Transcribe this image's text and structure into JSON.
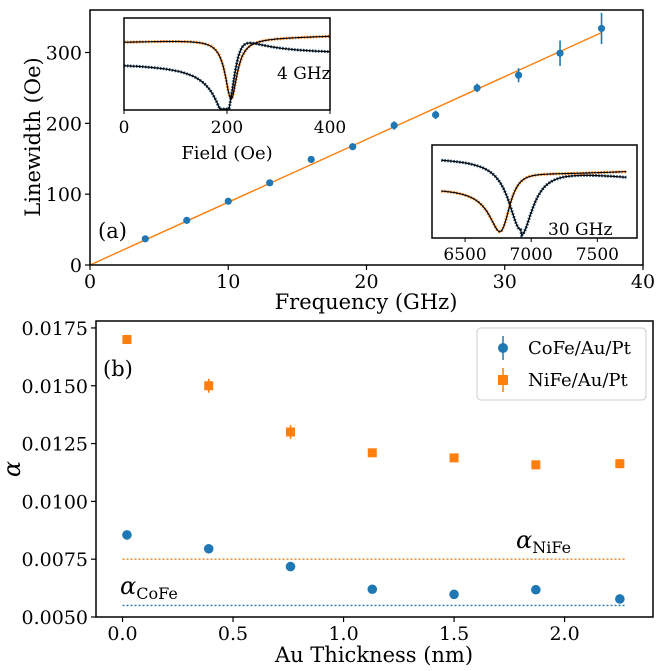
{
  "chart_data": [
    {
      "type": "scatter",
      "panel_tag": "(a)",
      "xlabel": "Frequency (GHz)",
      "ylabel": "Linewidth (Oe)",
      "xlim": [
        0,
        40
      ],
      "ylim": [
        0,
        360
      ],
      "xticks": [
        "0",
        "10",
        "20",
        "30",
        "40"
      ],
      "yticks": [
        "0",
        "100",
        "200",
        "300"
      ],
      "colors": {
        "data": "#1f77b4",
        "fit": "#ff7f0e"
      },
      "series": [
        {
          "x": [
            4,
            7,
            10,
            13,
            16,
            19,
            22,
            25,
            28,
            31,
            34,
            37
          ],
          "y": [
            37,
            63,
            90,
            116,
            149,
            167,
            197,
            212,
            250,
            268,
            299,
            334
          ],
          "yerr": [
            2,
            2,
            2,
            3,
            3,
            3,
            6,
            6,
            6,
            10,
            18,
            22
          ]
        }
      ],
      "fit": {
        "x": [
          0,
          37
        ],
        "y": [
          0,
          328
        ]
      },
      "insets": [
        {
          "annotation": "4 GHz",
          "xlabel": "Field (Oe)",
          "xlim": [
            0,
            400
          ],
          "xticks": [
            "0",
            "200",
            "400"
          ],
          "curve_colors": [
            "#ff7f0e",
            "#1f4e79"
          ]
        },
        {
          "annotation": "30 GHz",
          "xlim": [
            6250,
            7800
          ],
          "xticks": [
            "6500",
            "7000",
            "7500"
          ],
          "curve_colors": [
            "#ff7f0e",
            "#1f4e79"
          ]
        }
      ]
    },
    {
      "type": "scatter",
      "panel_tag": "(b)",
      "xlabel": "Au Thickness (nm)",
      "ylabel": "α",
      "xlim": [
        -0.12,
        2.4
      ],
      "ylim": [
        0.005,
        0.0178
      ],
      "xticks": [
        "0.0",
        "0.5",
        "1.0",
        "1.5",
        "2.0"
      ],
      "yticks": [
        "0.0050",
        "0.0075",
        "0.0100",
        "0.0125",
        "0.0150",
        "0.0175"
      ],
      "legend_position": "top-right",
      "series": [
        {
          "name": "CoFe/Au/Pt",
          "marker": "circle",
          "color": "#1f77b4",
          "x": [
            0.02,
            0.39,
            0.76,
            1.13,
            1.5,
            1.87,
            2.25
          ],
          "y": [
            0.00855,
            0.00795,
            0.00718,
            0.0062,
            0.00598,
            0.00618,
            0.00578
          ],
          "yerr": [
            0.00012,
            0.00012,
            0.00012,
            0.0001,
            0.0001,
            0.0001,
            0.0001
          ]
        },
        {
          "name": "NiFe/Au/Pt",
          "marker": "square",
          "color": "#ff7f0e",
          "x": [
            0.02,
            0.39,
            0.76,
            1.13,
            1.5,
            1.87,
            2.25
          ],
          "y": [
            0.017,
            0.015,
            0.013,
            0.0121,
            0.01188,
            0.01158,
            0.01163
          ],
          "yerr": [
            0.0002,
            0.0003,
            0.0003,
            0.00015,
            0.00015,
            0.0002,
            0.0002
          ]
        }
      ],
      "reference_lines": [
        {
          "label": "α",
          "subscript": "NiFe",
          "y": 0.0075,
          "color": "#ff7f0e"
        },
        {
          "label": "α",
          "subscript": "CoFe",
          "y": 0.0055,
          "color": "#1f77b4"
        }
      ]
    }
  ]
}
